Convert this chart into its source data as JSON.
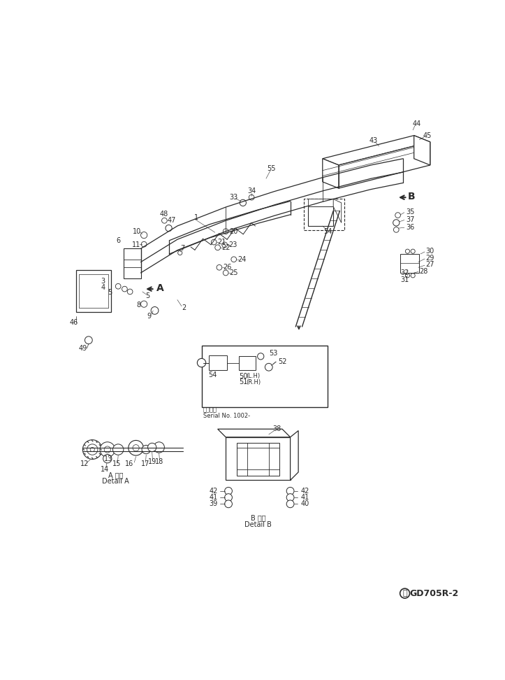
{
  "bg_color": "#ffffff",
  "lc": "#2a2a2a",
  "figsize": [
    7.23,
    9.72
  ],
  "dpi": 100,
  "watermark": "GD705R-2",
  "serial_label1": "適用车種",
  "serial_label2": "Serial No. 1002-",
  "detail_a_jp": "A 詳細",
  "detail_a_en": "Detail A",
  "detail_b_jp": "B 詳細",
  "detail_b_en": "Detail B"
}
